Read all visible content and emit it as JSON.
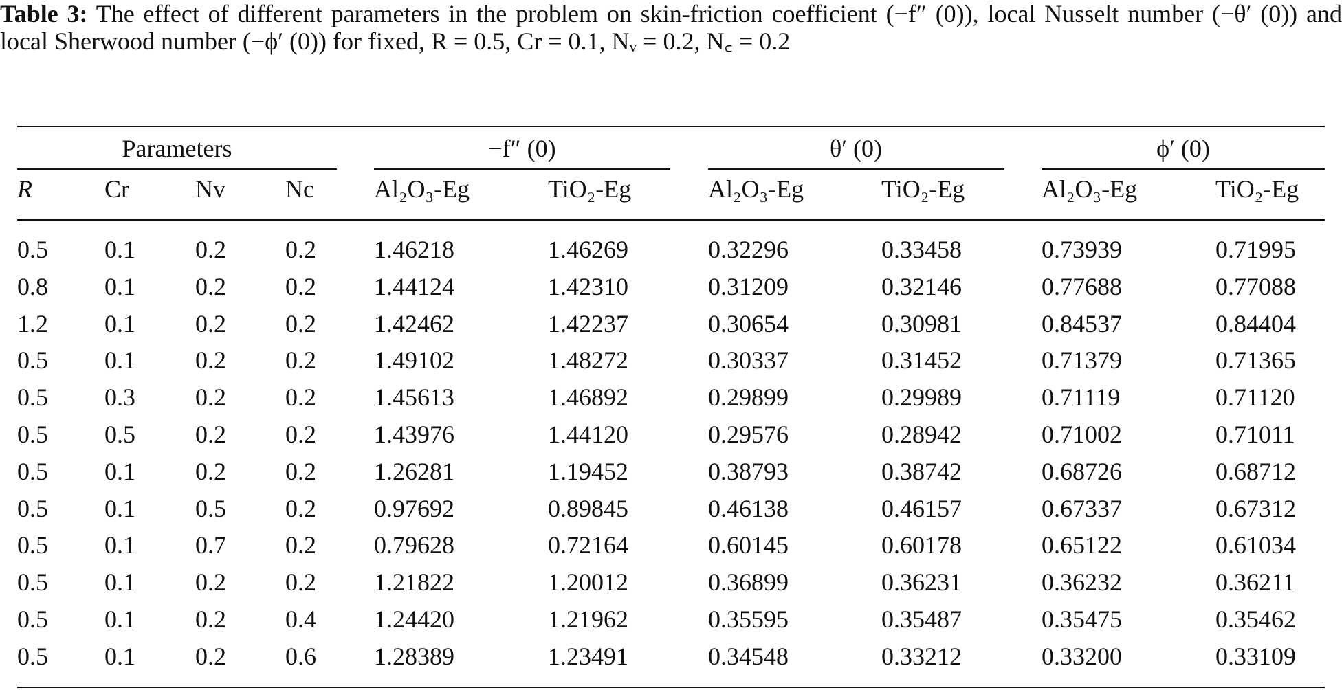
{
  "caption": {
    "label": "Table 3:",
    "text": "The effect of different parameters in the problem on skin-friction coefficient (−f″ (0)), local Nusselt number (−θ′ (0)) and local Sherwood number (−ϕ′ (0)) for fixed, R = 0.5, Cr = 0.1, Nᵥ = 0.2, N꜀ = 0.2"
  },
  "table": {
    "groups": [
      "Parameters",
      "−f″ (0)",
      "θ′ (0)",
      "ϕ′ (0)"
    ],
    "columns": [
      "R",
      "Cr",
      "Nv",
      "Nc",
      "Al₂O₃-Eg",
      "TiO₂-Eg",
      "Al₂O₃-Eg",
      "TiO₂-Eg",
      "Al₂O₃-Eg",
      "TiO₂-Eg"
    ],
    "rows": [
      [
        "0.5",
        "0.1",
        "0.2",
        "0.2",
        "1.46218",
        "1.46269",
        "0.32296",
        "0.33458",
        "0.73939",
        "0.71995"
      ],
      [
        "0.8",
        "0.1",
        "0.2",
        "0.2",
        "1.44124",
        "1.42310",
        "0.31209",
        "0.32146",
        "0.77688",
        "0.77088"
      ],
      [
        "1.2",
        "0.1",
        "0.2",
        "0.2",
        "1.42462",
        "1.42237",
        "0.30654",
        "0.30981",
        "0.84537",
        "0.84404"
      ],
      [
        "0.5",
        "0.1",
        "0.2",
        "0.2",
        "1.49102",
        "1.48272",
        "0.30337",
        "0.31452",
        "0.71379",
        "0.71365"
      ],
      [
        "0.5",
        "0.3",
        "0.2",
        "0.2",
        "1.45613",
        "1.46892",
        "0.29899",
        "0.29989",
        "0.71119",
        "0.71120"
      ],
      [
        "0.5",
        "0.5",
        "0.2",
        "0.2",
        "1.43976",
        "1.44120",
        "0.29576",
        "0.28942",
        "0.71002",
        "0.71011"
      ],
      [
        "0.5",
        "0.1",
        "0.2",
        "0.2",
        "1.26281",
        "1.19452",
        "0.38793",
        "0.38742",
        "0.68726",
        "0.68712"
      ],
      [
        "0.5",
        "0.1",
        "0.5",
        "0.2",
        "0.97692",
        "0.89845",
        "0.46138",
        "0.46157",
        "0.67337",
        "0.67312"
      ],
      [
        "0.5",
        "0.1",
        "0.7",
        "0.2",
        "0.79628",
        "0.72164",
        "0.60145",
        "0.60178",
        "0.65122",
        "0.61034"
      ],
      [
        "0.5",
        "0.1",
        "0.2",
        "0.2",
        "1.21822",
        "1.20012",
        "0.36899",
        "0.36231",
        "0.36232",
        "0.36211"
      ],
      [
        "0.5",
        "0.1",
        "0.2",
        "0.4",
        "1.24420",
        "1.21962",
        "0.35595",
        "0.35487",
        "0.35475",
        "0.35462"
      ],
      [
        "0.5",
        "0.1",
        "0.2",
        "0.6",
        "1.28389",
        "1.23491",
        "0.34548",
        "0.33212",
        "0.33200",
        "0.33109"
      ]
    ]
  }
}
